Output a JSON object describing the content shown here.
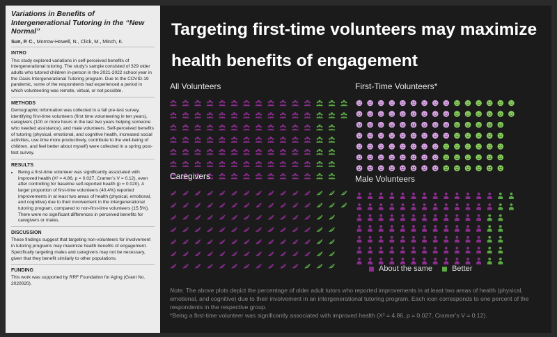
{
  "sidebar": {
    "title": "Variations in Benefits of Intergenerational Tutoring in the “New Normal”",
    "authors_lead": "Sun, P. C.",
    "authors_rest": ", Morrow-Howell, N., Click, M., Minch, K.",
    "intro_heading": "INTRO",
    "intro_text": "This study explored variations in self-perceived benefits of intergenerational tutoring. The study’s sample consisted of 329 older adults who tutored children in-person in the 2021-2022 school year in the Oasis Intergenerational Tutoring program. Due to the COVID-19 pandemic, some of the respondents had experienced a period in which volunteering was remote, virtual, or not possible.",
    "methods_heading": "METHODS",
    "methods_text": "Demographic information was collected in a fall pre-test survey, identifying first-time volunteers (first time volunteering in ten years), caregivers (100 or more hours in the last two years helping someone who needed assistance), and male volunteers. Self-perceived benefits of tutoring (physical, emotional, and cognitive health, increased social activities, use time more productively, contribute to the well-being of children, and feel better about myself) were collected in a spring post-test survey.",
    "results_heading": "RESULTS",
    "results_text": "Being a first-time volunteer was significantly associated with improved health (X² = 4.86, p = 0.027, Cramer’s V = 0.12), even after controlling for baseline self-reported health (p = 0.020). A larger proportion of first-time volunteers (40.4%) reported improvements in at least two areas of health (physical, emotional, and cognitive) due to their involvement in the intergenerational tutoring program, compared to non-first-time volunteers (15.5%). There were no significant differences in perceived benefits for caregivers or males.",
    "discussion_heading": "DISCUSSION",
    "discussion_text": "These findings suggest that targeting non-volunteers for involvement in tutoring programs may maximize health benefits of engagement. Specifically targeting males and caregivers may not be necessary, given that they benefit similarly to other populations.",
    "funding_heading": "FUNDING",
    "funding_text": "This work was supported by RRF Foundation for Aging (Grant No. 2020020)."
  },
  "headline": "Targeting first-time volunteers may maximize health benefits of engagement",
  "panels": [
    {
      "title": "All Volunteers",
      "icon": "group-icon",
      "better": 16
    },
    {
      "title": "First-Time Volunteers*",
      "icon": "smiley-icon",
      "better": 40
    },
    {
      "title": "Caregivers",
      "icon": "handshake-icon",
      "better": 17
    },
    {
      "title": "Male Volunteers",
      "icon": "person-icon",
      "better": 14
    }
  ],
  "legend": {
    "same": "About the same",
    "better": "Better"
  },
  "colors": {
    "same": "#8b2d8e",
    "better": "#5ba844",
    "same_light": "#d9a3e6",
    "better_light": "#86cf5a"
  },
  "note": {
    "label": "Note.",
    "text": " The above plots depict the percentage of older adult tutors who reported improvements in at least two areas of health (physical, emotional, and cognitive) due to their involvement in an intergenerational tutoring program. Each icon corresponds to one percent of the respondents in the respective group.",
    "footnote": "*Being a first-time volunteer was significantly associated with improved health (X² = 4.86, p = 0.027, Cramer’s V = 0.12)."
  }
}
